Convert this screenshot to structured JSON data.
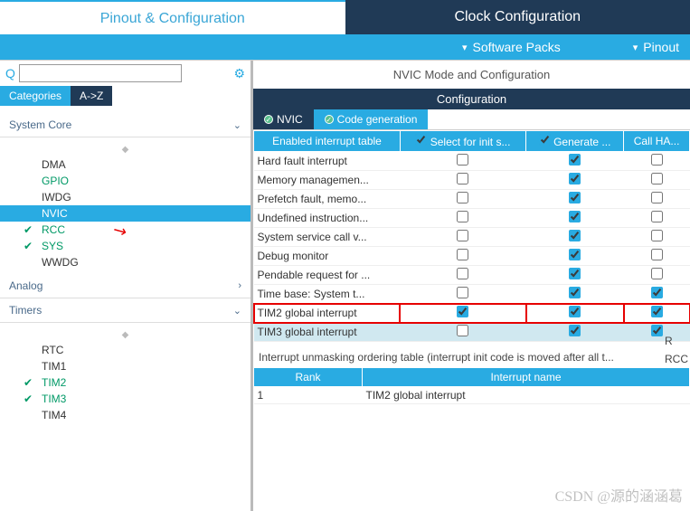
{
  "colors": {
    "accent": "#29abe2",
    "dark": "#203a56",
    "green": "#009966",
    "highlight": "#e60000"
  },
  "top_tabs": {
    "active": "Pinout & Configuration",
    "inactive": "Clock Configuration"
  },
  "sub_bar": {
    "software_packs": "Software Packs",
    "pinout": "Pinout"
  },
  "search": {
    "placeholder": ""
  },
  "cat_tabs": {
    "categories": "Categories",
    "az": "A->Z"
  },
  "tree": {
    "groups": [
      {
        "name": "System Core",
        "items": [
          {
            "label": "DMA",
            "green": false,
            "tick": false,
            "sel": false
          },
          {
            "label": "GPIO",
            "green": true,
            "tick": false,
            "sel": false
          },
          {
            "label": "IWDG",
            "green": false,
            "tick": false,
            "sel": false
          },
          {
            "label": "NVIC",
            "green": false,
            "tick": false,
            "sel": true
          },
          {
            "label": "RCC",
            "green": true,
            "tick": true,
            "sel": false
          },
          {
            "label": "SYS",
            "green": true,
            "tick": true,
            "sel": false
          },
          {
            "label": "WWDG",
            "green": false,
            "tick": false,
            "sel": false
          }
        ]
      },
      {
        "name": "Analog",
        "items": []
      },
      {
        "name": "Timers",
        "items": [
          {
            "label": "RTC",
            "green": false,
            "tick": false,
            "sel": false
          },
          {
            "label": "TIM1",
            "green": false,
            "tick": false,
            "sel": false
          },
          {
            "label": "TIM2",
            "green": true,
            "tick": true,
            "sel": false
          },
          {
            "label": "TIM3",
            "green": true,
            "tick": true,
            "sel": false
          },
          {
            "label": "TIM4",
            "green": false,
            "tick": false,
            "sel": false
          }
        ]
      }
    ]
  },
  "mode_title": "NVIC Mode and Configuration",
  "config_label": "Configuration",
  "inner_tabs": {
    "nvic": "NVIC",
    "codegen": "Code generation"
  },
  "itable": {
    "headers": [
      "Enabled interrupt table",
      "Select for init s...",
      "Generate ...",
      "Call HA..."
    ],
    "header_checks": [
      null,
      true,
      true,
      null
    ],
    "rows": [
      {
        "label": "Hard fault interrupt",
        "c": [
          false,
          true,
          false
        ],
        "hl": false,
        "alt": false
      },
      {
        "label": "Memory managemen...",
        "c": [
          false,
          true,
          false
        ],
        "hl": false,
        "alt": false
      },
      {
        "label": "Prefetch fault, memo...",
        "c": [
          false,
          true,
          false
        ],
        "hl": false,
        "alt": false
      },
      {
        "label": "Undefined instruction...",
        "c": [
          false,
          true,
          false
        ],
        "hl": false,
        "alt": false
      },
      {
        "label": "System service call v...",
        "c": [
          false,
          true,
          false
        ],
        "hl": false,
        "alt": false
      },
      {
        "label": "Debug monitor",
        "c": [
          false,
          true,
          false
        ],
        "hl": false,
        "alt": false
      },
      {
        "label": "Pendable request for ...",
        "c": [
          false,
          true,
          false
        ],
        "hl": false,
        "alt": false
      },
      {
        "label": "Time base: System t...",
        "c": [
          false,
          true,
          true
        ],
        "hl": false,
        "alt": false
      },
      {
        "label": "TIM2 global interrupt",
        "c": [
          true,
          true,
          true
        ],
        "hl": true,
        "alt": false
      },
      {
        "label": "TIM3 global interrupt",
        "c": [
          false,
          true,
          true
        ],
        "hl": false,
        "alt": true
      }
    ]
  },
  "note": "Interrupt unmasking ordering table (interrupt init code is moved after all t...",
  "order_table": {
    "headers": [
      "Rank",
      "Interrupt name"
    ],
    "rows": [
      [
        "1",
        "TIM2 global interrupt"
      ]
    ]
  },
  "side": {
    "r": "R",
    "rcc": "RCC"
  },
  "watermark": "CSDN @源的涵涵葛"
}
